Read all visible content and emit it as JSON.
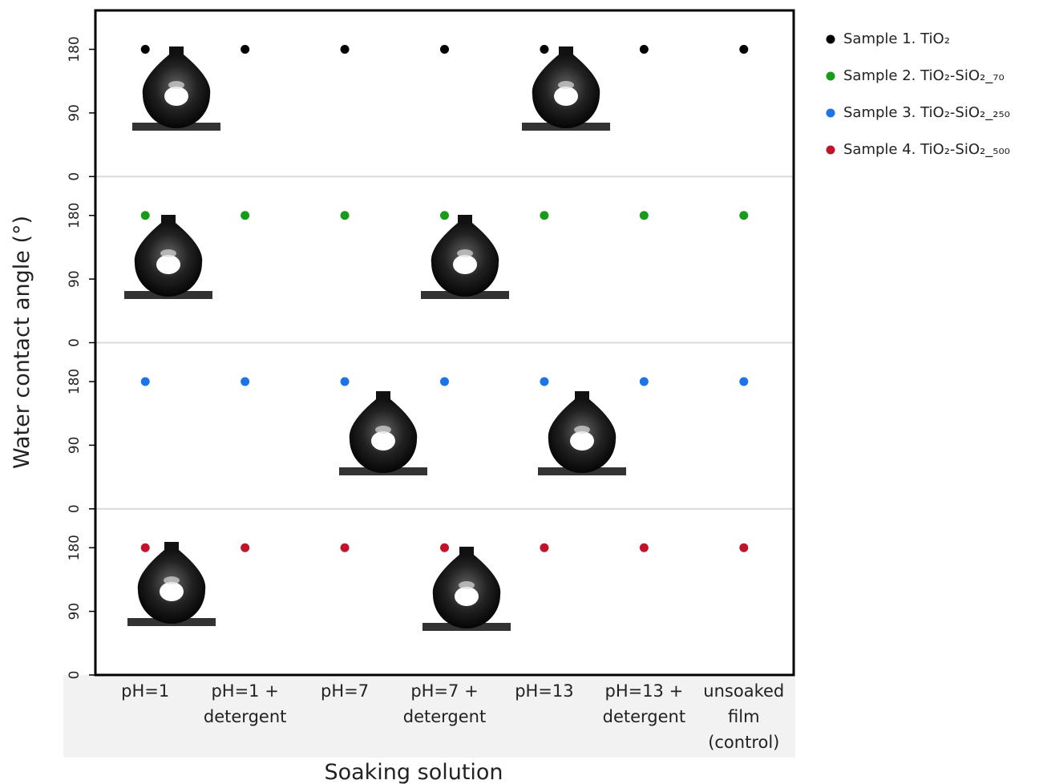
{
  "chart_data": {
    "type": "scatter",
    "x_label": "Soaking solution",
    "y_label": "Water contact angle (°)",
    "categories": [
      [
        "pH=1"
      ],
      [
        "pH=1 +",
        "detergent"
      ],
      [
        "pH=7"
      ],
      [
        "pH=7 +",
        "detergent"
      ],
      [
        "pH=13"
      ],
      [
        "pH=13 +",
        "detergent"
      ],
      [
        "unsoaked",
        "film",
        "(control)"
      ]
    ],
    "series": [
      {
        "name": "Sample 1. TiO₂",
        "color": "#000000",
        "values": [
          180,
          180,
          180,
          180,
          180,
          180,
          180
        ]
      },
      {
        "name": "Sample 2. TiO₂-SiO₂_₇₀",
        "color": "#1a9a1a",
        "values": [
          180,
          180,
          180,
          180,
          180,
          180,
          180
        ]
      },
      {
        "name": "Sample 3. TiO₂-SiO₂_₂₅₀",
        "color": "#1e73e8",
        "values": [
          180,
          180,
          180,
          180,
          180,
          180,
          180
        ]
      },
      {
        "name": "Sample 4. TiO₂-SiO₂_₅₀₀",
        "color": "#c0142a",
        "values": [
          180,
          180,
          180,
          180,
          180,
          180,
          180
        ]
      }
    ],
    "ylim": [
      0,
      235
    ],
    "yticks": [
      0,
      90,
      180
    ],
    "legend": "right"
  }
}
